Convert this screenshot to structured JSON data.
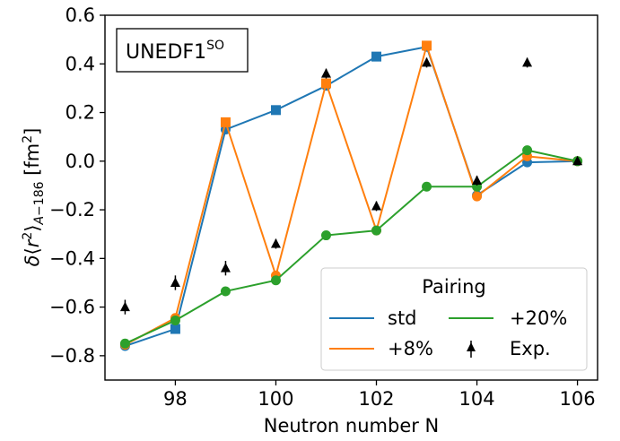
{
  "chart_data": {
    "type": "line",
    "xlabel": "Neutron number N",
    "ylabel": "δ⟨r²⟩A−186 [fm²]",
    "xlim": [
      96.6,
      106.4
    ],
    "ylim": [
      -0.9,
      0.6
    ],
    "x_ticks": [
      98,
      100,
      102,
      104,
      106
    ],
    "y_ticks": [
      -0.8,
      -0.6,
      -0.4,
      -0.2,
      0.0,
      0.2,
      0.4,
      0.6
    ],
    "x_tick_labels": [
      "98",
      "100",
      "102",
      "104",
      "106"
    ],
    "y_tick_labels": [
      "−0.8",
      "−0.6",
      "−0.4",
      "−0.2",
      "0.0",
      "0.2",
      "0.4",
      "0.6"
    ],
    "grid": false,
    "annotation": {
      "base": "UNEDF1",
      "superscript": "SO"
    },
    "legend": {
      "title": "Pairing",
      "placement": "lower-right"
    },
    "series": [
      {
        "name": "std",
        "color": "#1f77b4",
        "x": [
          97,
          98,
          99,
          100,
          101,
          102,
          103,
          104,
          105,
          106
        ],
        "y": [
          -0.76,
          -0.69,
          0.13,
          0.21,
          0.31,
          0.43,
          0.47,
          -0.14,
          -0.005,
          0.0
        ],
        "markers": [
          "circle",
          "square",
          "circle",
          "square",
          "circle",
          "square",
          "circle",
          "circle",
          "circle",
          "circle"
        ]
      },
      {
        "name": "+8%",
        "color": "#ff7f0e",
        "x": [
          97,
          98,
          99,
          100,
          101,
          102,
          103,
          104,
          105,
          106
        ],
        "y": [
          -0.755,
          -0.645,
          0.16,
          -0.47,
          0.32,
          -0.285,
          0.475,
          -0.145,
          0.02,
          0.0
        ],
        "markers": [
          "circle",
          "circle",
          "square",
          "circle",
          "square",
          "circle",
          "square",
          "circle",
          "circle",
          "circle"
        ]
      },
      {
        "name": "+20%",
        "color": "#2ca02c",
        "x": [
          97,
          98,
          99,
          100,
          101,
          102,
          103,
          104,
          105,
          106
        ],
        "y": [
          -0.75,
          -0.655,
          -0.535,
          -0.49,
          -0.305,
          -0.285,
          -0.105,
          -0.105,
          0.045,
          0.0
        ],
        "markers": [
          "circle",
          "circle",
          "circle",
          "circle",
          "circle",
          "circle",
          "circle",
          "circle",
          "circle",
          "circle"
        ]
      },
      {
        "name": "Exp.",
        "color": "#000000",
        "x": [
          97,
          98,
          99,
          100,
          101,
          102,
          103,
          104,
          105,
          106
        ],
        "y": [
          -0.6,
          -0.5,
          -0.44,
          -0.34,
          0.36,
          -0.185,
          0.405,
          -0.08,
          0.405,
          0.0
        ],
        "yerr": [
          0.03,
          0.03,
          0.03,
          0.02,
          0.02,
          0.02,
          0.02,
          0.02,
          0.02,
          0.01
        ],
        "markers": [
          "triangle",
          "triangle",
          "triangle",
          "triangle",
          "triangle",
          "triangle",
          "triangle",
          "triangle",
          "triangle",
          "triangle"
        ]
      }
    ]
  }
}
